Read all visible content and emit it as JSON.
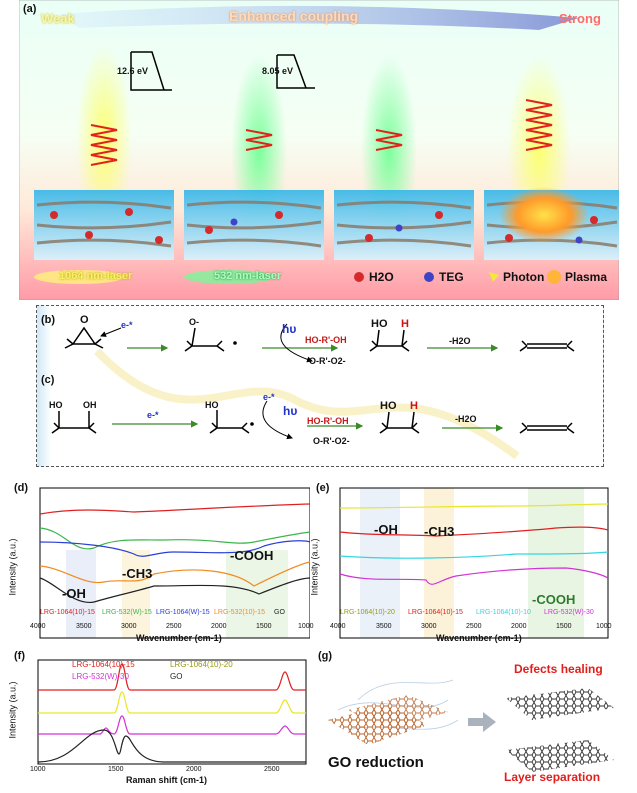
{
  "panel_a": {
    "label": "(a)",
    "weak": "Weak",
    "title": "Enhanced coupling",
    "strong": "Strong",
    "energy1": "12.6 eV",
    "energy2": "8.05 eV",
    "laser1064": "1064 nm-laser",
    "laser532": "532 nm-laser",
    "legend_h2o": "H2O",
    "legend_teg": "TEG",
    "legend_photon": "Photon",
    "legend_plasma": "Plasma",
    "colors": {
      "bg_top": "#e8fff4",
      "bg_bottom": "#ff9aa0",
      "laser_yellow": "#f4ff6a",
      "laser_green": "#8cffa6",
      "spring": "#e1221d"
    }
  },
  "panel_b": {
    "label": "(b)",
    "epoxide_o": "O",
    "e1": "e-*",
    "o_minus": "O-",
    "hv": "hυ",
    "hor_oh": "HO-R'-OH",
    "oro": "O-R'-O2-",
    "ho": "HO",
    "h": "H",
    "minus_h2o": "-H2O"
  },
  "panel_c": {
    "label": "(c)",
    "ho_left": "HO",
    "oh_left": "OH",
    "e1": "e-*",
    "ho_mid": "HO",
    "e2": "e-*",
    "hv": "hυ",
    "hor_oh": "HO-R'-OH",
    "oro": "O-R'-O2-",
    "ho": "HO",
    "h": "H",
    "minus_h2o": "-H2O"
  },
  "panel_d": {
    "label": "(d)",
    "ylabel": "Intensity (a.u.)",
    "xlabel": "Wavenumber (cm-1)",
    "xticks": [
      "4000",
      "3500",
      "3000",
      "2500",
      "2000",
      "1500",
      "1000"
    ],
    "band_oh": "-OH",
    "band_ch3": "-CH3",
    "band_cooh": "-COOH",
    "legend": [
      {
        "name": "LRG-1064(10)-15",
        "color": "#e02020"
      },
      {
        "name": "LRG-532(W)-15",
        "color": "#3bb54a"
      },
      {
        "name": "LRG-1064(W)-15",
        "color": "#2a3fd8"
      },
      {
        "name": "LRG-532(10)-15",
        "color": "#f28a1e"
      },
      {
        "name": "GO",
        "color": "#222222"
      }
    ]
  },
  "panel_e": {
    "label": "(e)",
    "ylabel": "Intensity (a.u.)",
    "xlabel": "Wavenumber (cm-1)",
    "xticks": [
      "4000",
      "3500",
      "3000",
      "2500",
      "2000",
      "1500",
      "1000"
    ],
    "band_oh": "-OH",
    "band_ch3": "-CH3",
    "band_cooh": "-COOH",
    "legend": [
      {
        "name": "LRG-1064(10)-20",
        "color": "#e6e62a"
      },
      {
        "name": "LRG-1064(10)-15",
        "color": "#e02020"
      },
      {
        "name": "LRG-1064(10)-10",
        "color": "#33d6e0"
      },
      {
        "name": "LRG-532(W)-30",
        "color": "#d233d6"
      }
    ]
  },
  "panel_f": {
    "label": "(f)",
    "ylabel": "Intensity (a.u.)",
    "xlabel": "Raman shift (cm-1)",
    "xticks": [
      "1000",
      "1500",
      "2000",
      "2500"
    ],
    "legend": [
      {
        "name": "LRG-1064(10)-15",
        "color": "#e02020"
      },
      {
        "name": "LRG-1064(10)-20",
        "color": "#e6e62a"
      },
      {
        "name": "LRG-532(W)-30",
        "color": "#d233d6"
      },
      {
        "name": "GO",
        "color": "#222222"
      }
    ]
  },
  "panel_g": {
    "label": "(g)",
    "go_reduction": "GO reduction",
    "defects": "Defects healing",
    "layer_sep": "Layer separation"
  }
}
